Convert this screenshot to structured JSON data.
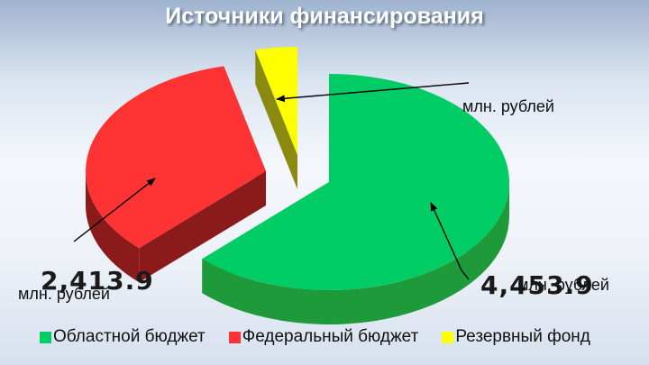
{
  "title": "Источники финансирования",
  "chart_data": {
    "type": "pie",
    "title": "Источники финансирования",
    "unit": "млн. рублей",
    "legend_position": "bottom",
    "series": [
      {
        "name": "Областной бюджет",
        "value": 4453.9,
        "label": "4,453.9",
        "unit": "млн. рублей",
        "color": "#00cc66",
        "side_color": "#1f9a3a"
      },
      {
        "name": "Федеральный бюджет",
        "value": 2413.9,
        "label": "2,413.9",
        "unit": "млн. рублей",
        "color": "#ff3333",
        "side_color": "#8b1a1a"
      },
      {
        "name": "Резервный фонд",
        "value": 267.9,
        "label": "",
        "unit": "млн. рублей",
        "color": "#ffff00",
        "side_color": "#8a8a10"
      }
    ]
  }
}
